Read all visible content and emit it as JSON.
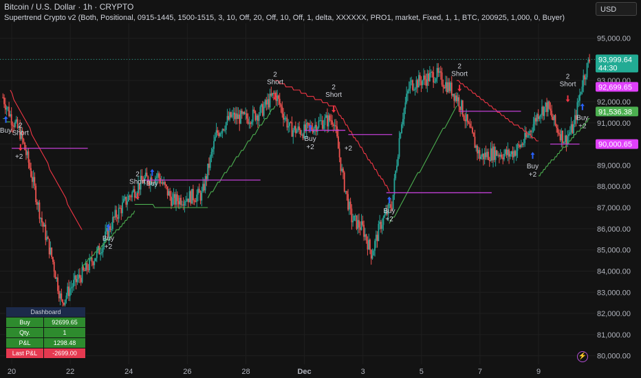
{
  "header": {
    "title": "Bitcoin / U.S. Dollar · 1h · CRYPTO",
    "indicator": "Supertrend Crypto v2 (Both, Positional, 0915-1445, 1500-1515, 3, 10, Off, 20, Off, 10, Off, 1, delta, XXXXXX, PRO1, market, Fixed, 1, 1, BTC, 200925, 1,000, 0, Buyer)",
    "currency_button": "USD"
  },
  "dashboard": {
    "title": "Dashboard",
    "rows": [
      {
        "label": "Buy",
        "value": "92699.65",
        "status": "pos"
      },
      {
        "label": "Qty.",
        "value": "1",
        "status": "pos"
      },
      {
        "label": "P&L",
        "value": "1298.48",
        "status": "pos"
      },
      {
        "label": "Last P&L",
        "value": "-2699.00",
        "status": "neg"
      }
    ]
  },
  "colors": {
    "background": "#131313",
    "up_candle": "#26a69a",
    "down_candle": "#ef5350",
    "supertrend_up": "#4caf50",
    "supertrend_down": "#f23645",
    "entry_line": "#c23fd6",
    "signal_arrow": "#2962ff"
  },
  "chart_data": {
    "type": "candlestick",
    "title": "Bitcoin / U.S. Dollar · 1h · CRYPTO",
    "x_tick_labels": [
      "20",
      "22",
      "24",
      "26",
      "28",
      "Dec",
      "3",
      "5",
      "7",
      "9"
    ],
    "y_tick_labels": [
      "80,000.00",
      "81,000.00",
      "82,000.00",
      "83,000.00",
      "84,000.00",
      "85,000.00",
      "86,000.00",
      "87,000.00",
      "88,000.00",
      "89,000.00",
      "90,000.00",
      "91,000.00",
      "92,000.00",
      "93,000.00",
      "94,000.00",
      "95,000.00"
    ],
    "ylim": [
      79600,
      95700
    ],
    "price_path": [
      {
        "day": 19.7,
        "price": 92200
      },
      {
        "day": 20.0,
        "price": 91200
      },
      {
        "day": 20.3,
        "price": 90500
      },
      {
        "day": 20.6,
        "price": 89000
      },
      {
        "day": 21.0,
        "price": 86500
      },
      {
        "day": 21.4,
        "price": 84500
      },
      {
        "day": 21.7,
        "price": 82500
      },
      {
        "day": 22.0,
        "price": 83200
      },
      {
        "day": 22.5,
        "price": 84000
      },
      {
        "day": 23.0,
        "price": 85000
      },
      {
        "day": 23.5,
        "price": 86500
      },
      {
        "day": 24.0,
        "price": 87500
      },
      {
        "day": 24.5,
        "price": 88300
      },
      {
        "day": 25.0,
        "price": 88500
      },
      {
        "day": 25.5,
        "price": 87300
      },
      {
        "day": 26.0,
        "price": 87500
      },
      {
        "day": 26.5,
        "price": 87600
      },
      {
        "day": 27.0,
        "price": 90500
      },
      {
        "day": 27.5,
        "price": 91300
      },
      {
        "day": 28.0,
        "price": 91200
      },
      {
        "day": 28.5,
        "price": 91500
      },
      {
        "day": 29.0,
        "price": 92400
      },
      {
        "day": 29.5,
        "price": 90700
      },
      {
        "day": 30.0,
        "price": 90600
      },
      {
        "day": 30.5,
        "price": 91000
      },
      {
        "day": 31.0,
        "price": 91200
      },
      {
        "day": 31.3,
        "price": 88500
      },
      {
        "day": 31.6,
        "price": 86500
      },
      {
        "day": 32.0,
        "price": 86000
      },
      {
        "day": 32.3,
        "price": 84800
      },
      {
        "day": 32.6,
        "price": 86200
      },
      {
        "day": 33.0,
        "price": 87200
      },
      {
        "day": 33.3,
        "price": 91000
      },
      {
        "day": 33.6,
        "price": 92800
      },
      {
        "day": 34.0,
        "price": 93000
      },
      {
        "day": 34.5,
        "price": 93300
      },
      {
        "day": 35.0,
        "price": 92600
      },
      {
        "day": 35.3,
        "price": 92000
      },
      {
        "day": 35.6,
        "price": 90800
      },
      {
        "day": 36.0,
        "price": 89400
      },
      {
        "day": 36.5,
        "price": 89600
      },
      {
        "day": 37.0,
        "price": 89500
      },
      {
        "day": 37.3,
        "price": 89800
      },
      {
        "day": 37.6,
        "price": 90300
      },
      {
        "day": 38.0,
        "price": 91500
      },
      {
        "day": 38.3,
        "price": 91800
      },
      {
        "day": 38.6,
        "price": 90800
      },
      {
        "day": 38.9,
        "price": 90200
      },
      {
        "day": 39.2,
        "price": 90800
      },
      {
        "day": 39.5,
        "price": 93000
      },
      {
        "day": 39.75,
        "price": 93999.64
      }
    ],
    "supertrend": [
      {
        "start": 19.7,
        "end": 19.95,
        "from": 91200,
        "to": 91000,
        "direction": "up"
      },
      {
        "start": 19.95,
        "end": 22.4,
        "from": 92500,
        "to": 85900,
        "direction": "down"
      },
      {
        "start": 22.4,
        "end": 24.2,
        "from": 84200,
        "to": 86800,
        "direction": "up"
      },
      {
        "start": 24.2,
        "end": 26.7,
        "from": 87100,
        "to": 87000,
        "direction": "up"
      },
      {
        "start": 26.7,
        "end": 29.0,
        "from": 87500,
        "to": 91800,
        "direction": "up"
      },
      {
        "start": 29.0,
        "end": 31.1,
        "from": 93000,
        "to": 91700,
        "direction": "down"
      },
      {
        "start": 31.1,
        "end": 32.9,
        "from": 91600,
        "to": 87800,
        "direction": "down"
      },
      {
        "start": 32.9,
        "end": 35.2,
        "from": 86200,
        "to": 91800,
        "direction": "up"
      },
      {
        "start": 35.2,
        "end": 38.0,
        "from": 93000,
        "to": 90100,
        "direction": "down"
      },
      {
        "start": 38.0,
        "end": 39.75,
        "from": 88500,
        "to": 91200,
        "direction": "up"
      }
    ],
    "entry_lines": [
      {
        "start": 20.0,
        "end": 22.6,
        "price": 89800
      },
      {
        "start": 24.5,
        "end": 28.5,
        "price": 88300
      },
      {
        "start": 30.0,
        "end": 31.4,
        "price": 90650
      },
      {
        "start": 31.5,
        "end": 33.0,
        "price": 90450
      },
      {
        "start": 32.8,
        "end": 36.4,
        "price": 87700
      },
      {
        "start": 35.3,
        "end": 37.4,
        "price": 91550
      },
      {
        "start": 38.4,
        "end": 39.4,
        "price": 90000
      }
    ],
    "signals": [
      {
        "day": 19.8,
        "price": 91000,
        "type": "buy",
        "label": "Buy"
      },
      {
        "day": 20.3,
        "price": 90000,
        "type": "short",
        "label": "Short",
        "count": "2"
      },
      {
        "day": 23.3,
        "price": 85900,
        "type": "buy",
        "label": "Buy",
        "count": "+2"
      },
      {
        "day": 24.3,
        "price": 87700,
        "type": "short",
        "label": "Short",
        "count": "2"
      },
      {
        "day": 24.8,
        "price": 88500,
        "type": "buy",
        "label": "Buy"
      },
      {
        "day": 29.0,
        "price": 92400,
        "type": "short",
        "label": "Short",
        "count": "2"
      },
      {
        "day": 30.2,
        "price": 90600,
        "type": "buy",
        "label": "Buy",
        "count": "+2"
      },
      {
        "day": 31.0,
        "price": 91800,
        "type": "short",
        "label": "Short",
        "count": "2"
      },
      {
        "day": 32.9,
        "price": 87200,
        "type": "buy",
        "label": "Buy",
        "count": "+2"
      },
      {
        "day": 35.3,
        "price": 92800,
        "type": "short",
        "label": "Short",
        "count": "2"
      },
      {
        "day": 37.8,
        "price": 89300,
        "type": "buy",
        "label": "Buy",
        "count": "+2"
      },
      {
        "day": 39.0,
        "price": 92300,
        "type": "short",
        "label": "Short",
        "count": "2"
      },
      {
        "day": 39.5,
        "price": 91600,
        "type": "buy",
        "label": "Buy",
        "count": "+2"
      }
    ],
    "extra_signal_counts": [
      "+2",
      "+2"
    ],
    "price_badges": [
      {
        "price": 93999.64,
        "label": "93,999.64",
        "sub": "44:30",
        "color": "#22ab94"
      },
      {
        "price": 92699.65,
        "label": "92,699.65",
        "color": "#e040fb"
      },
      {
        "price": 91536.38,
        "label": "91,536.38",
        "color": "#4caf50"
      },
      {
        "price": 90000.65,
        "label": "90,000.65",
        "color": "#e040fb"
      }
    ],
    "current_price": 93999.64
  }
}
